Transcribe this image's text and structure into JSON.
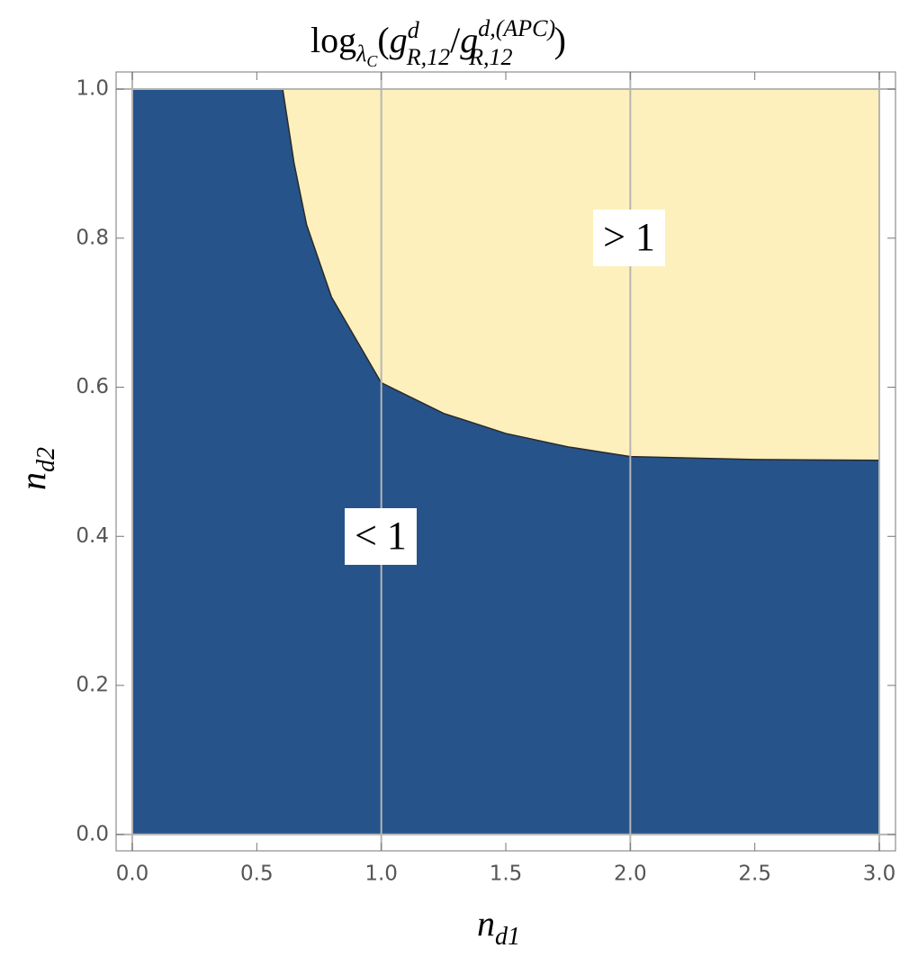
{
  "chart_data": {
    "type": "region",
    "title": [
      "log",
      "λ",
      "C",
      "(",
      "g",
      "d",
      "R,12",
      "/",
      "g",
      "d,(APC)",
      "R,12",
      ")"
    ],
    "x_label": [
      "n",
      "d1"
    ],
    "y_label": [
      "n",
      "d2"
    ],
    "xlim": [
      -0.065,
      3.065
    ],
    "ylim": [
      -0.022,
      1.023
    ],
    "plot_range": {
      "x": [
        0,
        3
      ],
      "y": [
        0,
        1
      ]
    },
    "xticks": [
      {
        "value": 0,
        "label": "0.0"
      },
      {
        "value": 0.5,
        "label": "0.5"
      },
      {
        "value": 1,
        "label": "1.0"
      },
      {
        "value": 1.5,
        "label": "1.5"
      },
      {
        "value": 2,
        "label": "2.0"
      },
      {
        "value": 2.5,
        "label": "2.5"
      },
      {
        "value": 3,
        "label": "3.0"
      }
    ],
    "yticks": [
      {
        "value": 0,
        "label": "0.0"
      },
      {
        "value": 0.2,
        "label": "0.2"
      },
      {
        "value": 0.4,
        "label": "0.4"
      },
      {
        "value": 0.6,
        "label": "0.6"
      },
      {
        "value": 0.8,
        "label": "0.8"
      },
      {
        "value": 1,
        "label": "1.0"
      }
    ],
    "grid_x": [
      0,
      1,
      2,
      3
    ],
    "grid_y": [
      0,
      1
    ],
    "boundary": {
      "x": [
        0.604,
        0.65,
        0.7,
        0.8,
        1.0,
        1.25,
        1.5,
        1.75,
        2.0,
        2.5,
        3.0
      ],
      "y": [
        1.0,
        0.9,
        0.818,
        0.721,
        0.606,
        0.565,
        0.538,
        0.52,
        0.507,
        0.503,
        0.502
      ]
    },
    "regions": [
      {
        "name": "< 1",
        "color": "#26538a"
      },
      {
        "name": "> 1",
        "color": "#fdf0bd"
      }
    ]
  }
}
